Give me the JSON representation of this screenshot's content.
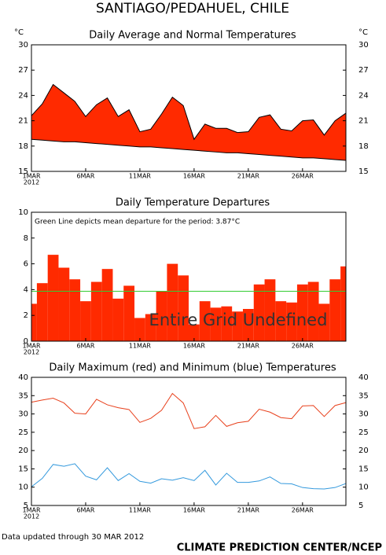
{
  "header": {
    "title": "SANTIAGO/PEDAHUEL, CHILE"
  },
  "chart_data": [
    {
      "type": "band",
      "title": "Daily Average and Normal Temperatures",
      "ylabel": "°C",
      "y2label": "°C",
      "x": [
        1,
        2,
        3,
        4,
        5,
        6,
        7,
        8,
        9,
        10,
        11,
        12,
        13,
        14,
        15,
        16,
        17,
        18,
        19,
        20,
        21,
        22,
        23,
        24,
        25,
        26,
        27,
        28,
        29,
        30
      ],
      "xlim": [
        1,
        30
      ],
      "xticks": [
        {
          "value": 1,
          "label": "1MAR"
        },
        {
          "value": 6,
          "label": "6MAR"
        },
        {
          "value": 11,
          "label": "11MAR"
        },
        {
          "value": 16,
          "label": "16MAR"
        },
        {
          "value": 21,
          "label": "21MAR"
        },
        {
          "value": 26,
          "label": "26MAR"
        }
      ],
      "year_label": "2012",
      "ylim": [
        15,
        30
      ],
      "yticks": [
        15,
        18,
        21,
        24,
        27,
        30
      ],
      "right_axis": true,
      "color": "#ff2a00",
      "series": [
        {
          "color": "#000000",
          "values": [
            21.6,
            23.0,
            25.3,
            24.3,
            23.3,
            21.5,
            22.9,
            23.7,
            21.5,
            22.3,
            19.7,
            20.0,
            21.8,
            23.8,
            22.8,
            18.8,
            20.6,
            20.1,
            20.1,
            19.6,
            19.7,
            21.4,
            21.7,
            20.0,
            19.8,
            21.0,
            21.1,
            19.3,
            21.0,
            21.9
          ]
        },
        {
          "color": "#000000",
          "values": [
            18.8,
            18.7,
            18.6,
            18.5,
            18.5,
            18.4,
            18.3,
            18.2,
            18.1,
            18.0,
            17.9,
            17.9,
            17.8,
            17.7,
            17.6,
            17.5,
            17.4,
            17.3,
            17.2,
            17.2,
            17.1,
            17.0,
            16.9,
            16.8,
            16.7,
            16.6,
            16.6,
            16.5,
            16.4,
            16.3
          ]
        }
      ]
    },
    {
      "type": "bar",
      "title": "Daily Temperature Departures",
      "x": [
        1,
        2,
        3,
        4,
        5,
        6,
        7,
        8,
        9,
        10,
        11,
        12,
        13,
        14,
        15,
        16,
        17,
        18,
        19,
        20,
        21,
        22,
        23,
        24,
        25,
        26,
        27,
        28,
        29,
        30
      ],
      "xlim": [
        1,
        30
      ],
      "xticks": [
        {
          "value": 1,
          "label": "1MAR"
        },
        {
          "value": 6,
          "label": "6MAR"
        },
        {
          "value": 11,
          "label": "11MAR"
        },
        {
          "value": 16,
          "label": "16MAR"
        },
        {
          "value": 21,
          "label": "21MAR"
        },
        {
          "value": 26,
          "label": "26MAR"
        }
      ],
      "year_label": "2012",
      "ylim": [
        0,
        10
      ],
      "yticks": [
        0,
        2,
        4,
        6,
        8,
        10
      ],
      "right_axis": false,
      "color": "#ff2a00",
      "values": [
        2.9,
        4.5,
        6.7,
        5.7,
        4.8,
        3.1,
        4.6,
        5.6,
        3.3,
        4.3,
        1.8,
        2.1,
        3.9,
        6.0,
        5.1,
        1.3,
        3.1,
        2.6,
        2.7,
        2.3,
        2.5,
        4.4,
        4.8,
        3.1,
        3.0,
        4.4,
        4.6,
        2.9,
        4.8,
        5.8
      ],
      "mean": 3.87,
      "mean_color": "#33cc33",
      "annotation": "Green Line depicts mean departure for the period: 3.87°C",
      "overlay_text": "Entire Grid Undefined"
    },
    {
      "type": "line",
      "title": "Daily Maximum (red) and Minimum (blue) Temperatures",
      "x": [
        1,
        2,
        3,
        4,
        5,
        6,
        7,
        8,
        9,
        10,
        11,
        12,
        13,
        14,
        15,
        16,
        17,
        18,
        19,
        20,
        21,
        22,
        23,
        24,
        25,
        26,
        27,
        28,
        29,
        30
      ],
      "xlim": [
        1,
        30
      ],
      "xticks": [
        {
          "value": 1,
          "label": "1MAR"
        },
        {
          "value": 6,
          "label": "6MAR"
        },
        {
          "value": 11,
          "label": "11MAR"
        },
        {
          "value": 16,
          "label": "16MAR"
        },
        {
          "value": 21,
          "label": "21MAR"
        },
        {
          "value": 26,
          "label": "26MAR"
        }
      ],
      "year_label": "2012",
      "ylim": [
        5,
        40
      ],
      "yticks": [
        5,
        10,
        15,
        20,
        25,
        30,
        35,
        40
      ],
      "right_axis": true,
      "series": [
        {
          "color": "#e8401c",
          "values": [
            33.2,
            33.8,
            34.3,
            33.0,
            30.2,
            30.0,
            34.0,
            32.5,
            31.7,
            31.2,
            27.7,
            28.8,
            31.0,
            35.6,
            33.0,
            26.0,
            26.5,
            29.6,
            26.6,
            27.6,
            28.0,
            31.3,
            30.5,
            29.0,
            28.7,
            32.2,
            32.3,
            29.3,
            32.3,
            33.1
          ]
        },
        {
          "color": "#3399dd",
          "values": [
            10.1,
            12.4,
            16.2,
            15.7,
            16.4,
            13.0,
            12.0,
            15.3,
            11.8,
            13.7,
            11.6,
            11.1,
            12.3,
            11.9,
            12.6,
            11.8,
            14.6,
            10.6,
            13.8,
            11.3,
            11.3,
            11.7,
            12.8,
            11.0,
            10.9,
            9.9,
            9.6,
            9.5,
            9.9,
            11.0
          ]
        }
      ]
    }
  ],
  "footer": {
    "updated": "Data updated through 30 MAR 2012",
    "credit": "CLIMATE PREDICTION CENTER/NCEP"
  }
}
